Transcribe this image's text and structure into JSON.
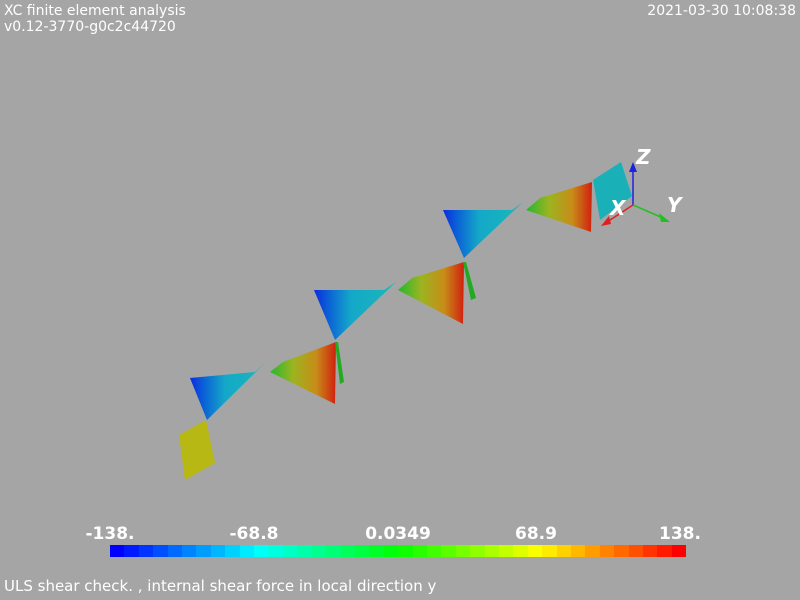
{
  "header": {
    "app_title": "XC finite element analysis",
    "version": "v0.12-3770-g0c2c44720",
    "timestamp": "2021-03-30 10:08:38"
  },
  "axes_triad": {
    "x_label": "X",
    "y_label": "Y",
    "z_label": "Z"
  },
  "scalar_bar": {
    "tick_labels": [
      "-138.",
      "-68.8",
      "0.0349",
      "68.9",
      "138."
    ],
    "min": -138,
    "max": 138,
    "colormap": "rainbow-blue-to-red"
  },
  "footer": {
    "caption": "ULS shear check. , internal shear force in local direction y"
  },
  "colors": {
    "background": "#a5a5a5",
    "cyan_face": "#1ab0b8",
    "yellow_face": "#b8b814",
    "green_edge": "#22aa22"
  }
}
